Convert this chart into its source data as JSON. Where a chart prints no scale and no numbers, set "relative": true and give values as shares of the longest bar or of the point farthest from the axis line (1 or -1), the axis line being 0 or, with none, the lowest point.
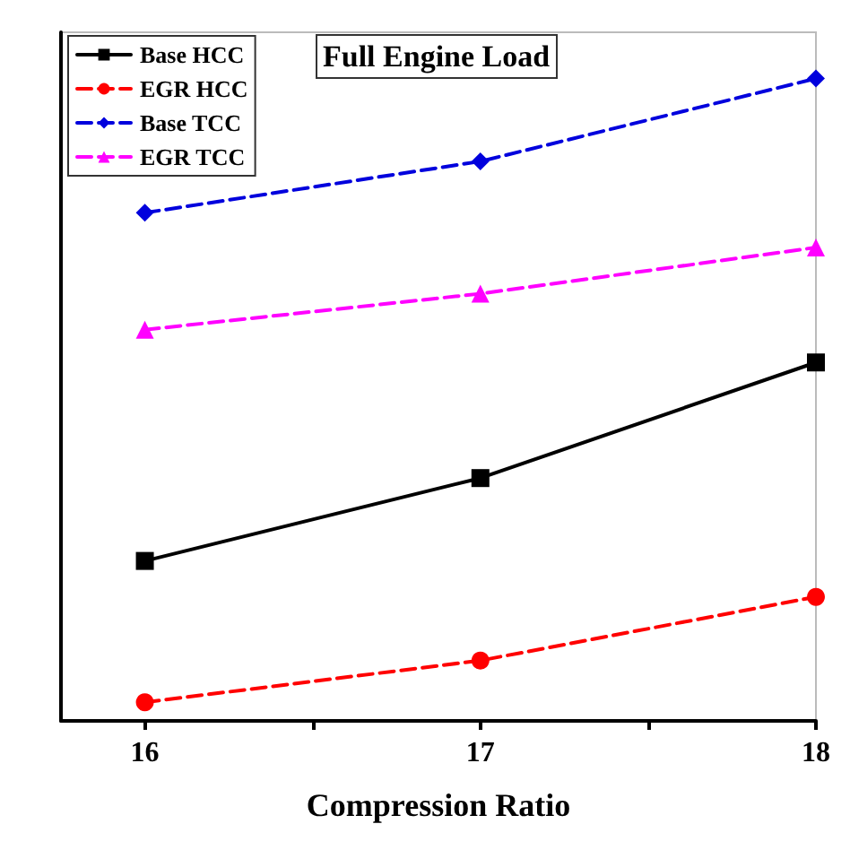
{
  "chart_data": {
    "type": "line",
    "title": "Full Engine Load",
    "xlabel": "Compression Ratio",
    "relative": true,
    "xlim": [
      15.75,
      18
    ],
    "xticks": [
      16,
      {
        "value": 16.5,
        "label": null
      },
      17,
      {
        "value": 17.5,
        "label": null
      },
      18
    ],
    "x": [
      16,
      17,
      18
    ],
    "series": [
      {
        "name": "Base HCC",
        "color": "#000000",
        "marker": "square",
        "line_style": "solid",
        "values": [
          0.249,
          0.378,
          0.558
        ]
      },
      {
        "name": "EGR HCC",
        "color": "#ff0000",
        "marker": "circle",
        "line_style": "dashed",
        "values": [
          0.029,
          0.094,
          0.193
        ]
      },
      {
        "name": "Base TCC",
        "color": "#0000dd",
        "marker": "diamond",
        "line_style": "dashed",
        "values": [
          0.791,
          0.871,
          1
        ]
      },
      {
        "name": "EGR TCC",
        "color": "#ff00ff",
        "marker": "triangle",
        "line_style": "dashed",
        "values": [
          0.609,
          0.665,
          0.737
        ]
      }
    ],
    "legend": "top left",
    "grid": false
  }
}
